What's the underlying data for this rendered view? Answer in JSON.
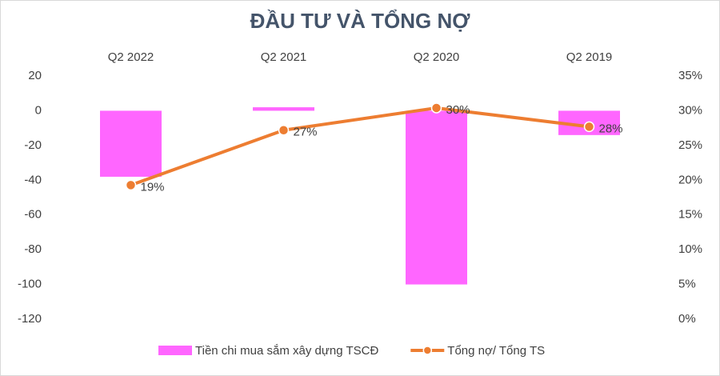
{
  "chart_data": {
    "type": "bar-line",
    "title": "ĐẦU TƯ VÀ TỔNG NỢ",
    "categories": [
      "Q2 2022",
      "Q2 2021",
      "Q2 2020",
      "Q2 2019"
    ],
    "series": [
      {
        "name": "Tiền chi mua sắm xây dựng TSCĐ",
        "type": "bar",
        "color": "#ff66ff",
        "values": [
          -38,
          2,
          -100,
          -14
        ]
      },
      {
        "name": "Tổng nợ/ Tổng TS",
        "type": "line",
        "axis": "y2",
        "color": "#ed7d31",
        "values": [
          19.3,
          27.2,
          30.4,
          27.7
        ],
        "value_labels": [
          "19%",
          "27%",
          "30%",
          "28%"
        ]
      }
    ],
    "ylim": [
      -120,
      20
    ],
    "yticks": [
      20,
      0,
      -20,
      -40,
      -60,
      -80,
      -100,
      -120
    ],
    "y2lim": [
      0,
      35
    ],
    "y2ticks": [
      {
        "value": 35,
        "label": "35%"
      },
      {
        "value": 30,
        "label": "30%"
      },
      {
        "value": 25,
        "label": "25%"
      },
      {
        "value": 20,
        "label": "20%"
      },
      {
        "value": 15,
        "label": "15%"
      },
      {
        "value": 10,
        "label": "10%"
      },
      {
        "value": 5,
        "label": "5%"
      },
      {
        "value": 0,
        "label": "0%"
      }
    ],
    "grid": false,
    "legend": "bottom"
  }
}
